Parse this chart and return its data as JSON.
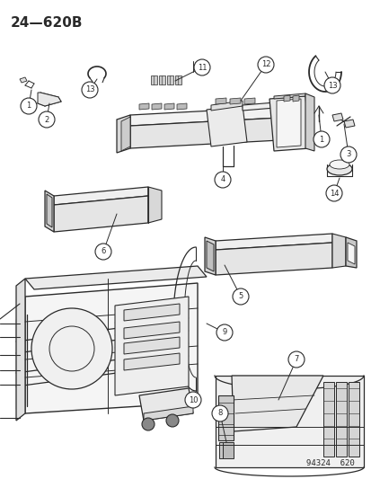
{
  "title": "24—620B",
  "watermark": "94324  620",
  "bg_color": "#ffffff",
  "lc": "#2a2a2a",
  "fig_width": 4.14,
  "fig_height": 5.33,
  "dpi": 100
}
